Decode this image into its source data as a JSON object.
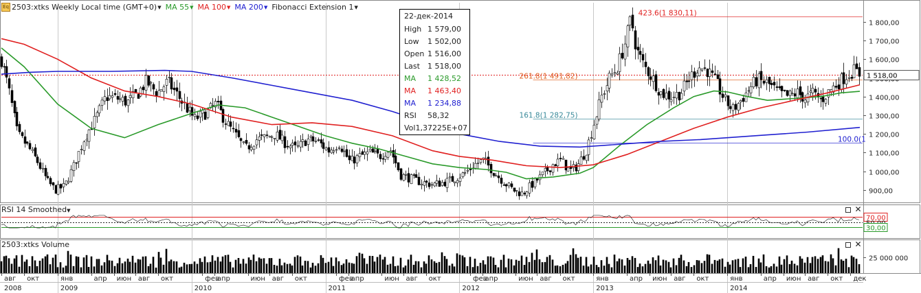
{
  "header": {
    "symbol_icon": "Eq",
    "title": "2503:xtks Weekly Local time (GMT+0)",
    "indicators": [
      {
        "label": "MA 55",
        "color": "#2a9a2a"
      },
      {
        "label": "MA 100",
        "color": "#e02020"
      },
      {
        "label": "MA 200",
        "color": "#2020d0"
      },
      {
        "label": "Fibonacci Extension 1",
        "color": "#222222"
      }
    ]
  },
  "tooltip": {
    "date": "22-дек-2014",
    "rows": [
      {
        "k": "High",
        "v": "1 579,00",
        "color": "#222222"
      },
      {
        "k": "Low",
        "v": "1 502,00",
        "color": "#222222"
      },
      {
        "k": "Open",
        "v": "1 516,00",
        "color": "#222222"
      },
      {
        "k": "Last",
        "v": "1 518,00",
        "color": "#222222"
      },
      {
        "k": "MA",
        "v": "1 428,52",
        "color": "#2a9a2a"
      },
      {
        "k": "MA",
        "v": "1 463,40",
        "color": "#e02020"
      },
      {
        "k": "MA",
        "v": "1 234,88",
        "color": "#2020d0"
      },
      {
        "k": "RSI",
        "v": "58,32",
        "color": "#222222"
      },
      {
        "k": "Vol",
        "v": "1,37225E+07",
        "color": "#222222"
      }
    ]
  },
  "rsi_panel": {
    "title": "RSI 14 Smoothed"
  },
  "volume_panel": {
    "title": "2503:xtks Volume"
  },
  "chart_data": {
    "type": "line",
    "price_axis": {
      "min": 830,
      "max": 1880,
      "ticks": [
        900,
        1000,
        1100,
        1200,
        1300,
        1400,
        1500,
        1600,
        1700,
        1800
      ],
      "tick_labels": [
        "900,00",
        "1 000,00",
        "1 100,00",
        "1 200,00",
        "1 300,00",
        "1 400,00",
        "1 500,00",
        "1 600,00",
        "1 700,00",
        "1 800,00"
      ]
    },
    "last_price": {
      "value": 1518,
      "label": "1 518,00"
    },
    "time_axis": {
      "start": 2008.58,
      "end": 2014.99,
      "months": [
        {
          "t": 2008.58,
          "label": "авг"
        },
        {
          "t": 2008.75,
          "label": "окт"
        },
        {
          "t": 2009.0,
          "label": "янв"
        },
        {
          "t": 2009.25,
          "label": "апр"
        },
        {
          "t": 2009.42,
          "label": "июн"
        },
        {
          "t": 2009.58,
          "label": "авг"
        },
        {
          "t": 2009.75,
          "label": "окт"
        },
        {
          "t": 2010.08,
          "label": "фев"
        },
        {
          "t": 2010.17,
          "label": "апр"
        },
        {
          "t": 2010.42,
          "label": "июн"
        },
        {
          "t": 2010.58,
          "label": "авг"
        },
        {
          "t": 2010.75,
          "label": "окт"
        },
        {
          "t": 2011.08,
          "label": "фев"
        },
        {
          "t": 2011.17,
          "label": "апр"
        },
        {
          "t": 2011.42,
          "label": "июн"
        },
        {
          "t": 2011.58,
          "label": "авг"
        },
        {
          "t": 2011.75,
          "label": "окт"
        },
        {
          "t": 2012.08,
          "label": "фев"
        },
        {
          "t": 2012.17,
          "label": "апр"
        },
        {
          "t": 2012.42,
          "label": "июн"
        },
        {
          "t": 2012.58,
          "label": "авг"
        },
        {
          "t": 2012.75,
          "label": "окт"
        },
        {
          "t": 2013.0,
          "label": "янв"
        },
        {
          "t": 2013.25,
          "label": "апр"
        },
        {
          "t": 2013.42,
          "label": "июн"
        },
        {
          "t": 2013.58,
          "label": "авг"
        },
        {
          "t": 2013.75,
          "label": "окт"
        },
        {
          "t": 2014.0,
          "label": "янв"
        },
        {
          "t": 2014.25,
          "label": "апр"
        },
        {
          "t": 2014.42,
          "label": "июн"
        },
        {
          "t": 2014.58,
          "label": "авг"
        },
        {
          "t": 2014.75,
          "label": "окт"
        },
        {
          "t": 2014.92,
          "label": "дек"
        }
      ],
      "years": [
        {
          "t": 2008.58,
          "label": "2008"
        },
        {
          "t": 2009.0,
          "label": "2009"
        },
        {
          "t": 2010.0,
          "label": "2010"
        },
        {
          "t": 2011.0,
          "label": "2011"
        },
        {
          "t": 2012.0,
          "label": "2012"
        },
        {
          "t": 2013.0,
          "label": "2013"
        },
        {
          "t": 2014.0,
          "label": "2014"
        }
      ]
    },
    "close_anchors": [
      [
        2008.58,
        1600
      ],
      [
        2008.63,
        1450
      ],
      [
        2008.7,
        1200
      ],
      [
        2008.78,
        1130
      ],
      [
        2008.85,
        1050
      ],
      [
        2008.92,
        950
      ],
      [
        2008.98,
        900
      ],
      [
        2009.05,
        920
      ],
      [
        2009.12,
        1030
      ],
      [
        2009.2,
        1180
      ],
      [
        2009.28,
        1280
      ],
      [
        2009.36,
        1400
      ],
      [
        2009.44,
        1390
      ],
      [
        2009.52,
        1370
      ],
      [
        2009.6,
        1420
      ],
      [
        2009.66,
        1480
      ],
      [
        2009.74,
        1420
      ],
      [
        2009.82,
        1480
      ],
      [
        2009.88,
        1420
      ],
      [
        2009.95,
        1350
      ],
      [
        2010.02,
        1280
      ],
      [
        2010.1,
        1310
      ],
      [
        2010.18,
        1360
      ],
      [
        2010.25,
        1270
      ],
      [
        2010.32,
        1200
      ],
      [
        2010.4,
        1120
      ],
      [
        2010.48,
        1170
      ],
      [
        2010.55,
        1180
      ],
      [
        2010.62,
        1200
      ],
      [
        2010.7,
        1150
      ],
      [
        2010.78,
        1120
      ],
      [
        2010.86,
        1170
      ],
      [
        2010.94,
        1160
      ],
      [
        2011.02,
        1110
      ],
      [
        2011.1,
        1150
      ],
      [
        2011.18,
        1050
      ],
      [
        2011.25,
        1080
      ],
      [
        2011.33,
        1100
      ],
      [
        2011.4,
        1080
      ],
      [
        2011.48,
        1120
      ],
      [
        2011.56,
        980
      ],
      [
        2011.64,
        960
      ],
      [
        2011.72,
        940
      ],
      [
        2011.8,
        930
      ],
      [
        2011.88,
        940
      ],
      [
        2011.96,
        960
      ],
      [
        2012.04,
        990
      ],
      [
        2012.12,
        1040
      ],
      [
        2012.18,
        1060
      ],
      [
        2012.25,
        1000
      ],
      [
        2012.32,
        950
      ],
      [
        2012.4,
        900
      ],
      [
        2012.47,
        880
      ],
      [
        2012.54,
        930
      ],
      [
        2012.62,
        980
      ],
      [
        2012.7,
        1040
      ],
      [
        2012.76,
        1060
      ],
      [
        2012.82,
        1000
      ],
      [
        2012.88,
        1030
      ],
      [
        2012.95,
        1120
      ],
      [
        2013.0,
        1250
      ],
      [
        2013.06,
        1400
      ],
      [
        2013.12,
        1500
      ],
      [
        2013.18,
        1560
      ],
      [
        2013.24,
        1700
      ],
      [
        2013.28,
        1820
      ],
      [
        2013.32,
        1650
      ],
      [
        2013.38,
        1560
      ],
      [
        2013.44,
        1500
      ],
      [
        2013.5,
        1420
      ],
      [
        2013.58,
        1400
      ],
      [
        2013.65,
        1420
      ],
      [
        2013.72,
        1500
      ],
      [
        2013.78,
        1560
      ],
      [
        2013.85,
        1540
      ],
      [
        2013.92,
        1470
      ],
      [
        2013.98,
        1380
      ],
      [
        2014.04,
        1330
      ],
      [
        2014.1,
        1380
      ],
      [
        2014.16,
        1440
      ],
      [
        2014.22,
        1490
      ],
      [
        2014.3,
        1470
      ],
      [
        2014.38,
        1420
      ],
      [
        2014.45,
        1400
      ],
      [
        2014.52,
        1420
      ],
      [
        2014.58,
        1390
      ],
      [
        2014.64,
        1420
      ],
      [
        2014.7,
        1380
      ],
      [
        2014.76,
        1430
      ],
      [
        2014.82,
        1470
      ],
      [
        2014.88,
        1510
      ],
      [
        2014.94,
        1540
      ],
      [
        2014.99,
        1518
      ]
    ],
    "series": [
      {
        "name": "MA 55",
        "color": "#2a9a2a",
        "points": [
          [
            2008.58,
            1660
          ],
          [
            2008.75,
            1560
          ],
          [
            2009.0,
            1360
          ],
          [
            2009.25,
            1230
          ],
          [
            2009.5,
            1180
          ],
          [
            2009.75,
            1250
          ],
          [
            2010.0,
            1310
          ],
          [
            2010.2,
            1355
          ],
          [
            2010.4,
            1340
          ],
          [
            2010.6,
            1290
          ],
          [
            2010.8,
            1240
          ],
          [
            2011.0,
            1190
          ],
          [
            2011.2,
            1150
          ],
          [
            2011.4,
            1120
          ],
          [
            2011.6,
            1080
          ],
          [
            2011.8,
            1040
          ],
          [
            2012.0,
            1020
          ],
          [
            2012.2,
            1010
          ],
          [
            2012.35,
            995
          ],
          [
            2012.5,
            960
          ],
          [
            2012.7,
            970
          ],
          [
            2012.9,
            990
          ],
          [
            2013.0,
            1020
          ],
          [
            2013.2,
            1140
          ],
          [
            2013.4,
            1250
          ],
          [
            2013.6,
            1340
          ],
          [
            2013.75,
            1400
          ],
          [
            2013.9,
            1430
          ],
          [
            2014.0,
            1425
          ],
          [
            2014.15,
            1400
          ],
          [
            2014.3,
            1380
          ],
          [
            2014.5,
            1390
          ],
          [
            2014.7,
            1400
          ],
          [
            2014.85,
            1420
          ],
          [
            2014.99,
            1428
          ]
        ]
      },
      {
        "name": "MA 100",
        "color": "#e02020",
        "points": [
          [
            2008.58,
            1710
          ],
          [
            2008.75,
            1680
          ],
          [
            2009.0,
            1600
          ],
          [
            2009.25,
            1500
          ],
          [
            2009.5,
            1430
          ],
          [
            2009.75,
            1400
          ],
          [
            2010.0,
            1360
          ],
          [
            2010.3,
            1290
          ],
          [
            2010.6,
            1250
          ],
          [
            2010.9,
            1260
          ],
          [
            2011.2,
            1240
          ],
          [
            2011.5,
            1190
          ],
          [
            2011.8,
            1110
          ],
          [
            2012.0,
            1080
          ],
          [
            2012.25,
            1060
          ],
          [
            2012.5,
            1030
          ],
          [
            2012.75,
            1020
          ],
          [
            2013.0,
            1035
          ],
          [
            2013.25,
            1090
          ],
          [
            2013.5,
            1160
          ],
          [
            2013.75,
            1230
          ],
          [
            2014.0,
            1290
          ],
          [
            2014.25,
            1340
          ],
          [
            2014.5,
            1380
          ],
          [
            2014.75,
            1420
          ],
          [
            2014.99,
            1463
          ]
        ]
      },
      {
        "name": "MA 200",
        "color": "#2020d0",
        "points": [
          [
            2008.58,
            1520
          ],
          [
            2008.8,
            1530
          ],
          [
            2009.0,
            1535
          ],
          [
            2009.4,
            1535
          ],
          [
            2009.8,
            1540
          ],
          [
            2010.0,
            1535
          ],
          [
            2010.3,
            1500
          ],
          [
            2010.6,
            1460
          ],
          [
            2010.9,
            1420
          ],
          [
            2011.2,
            1380
          ],
          [
            2011.5,
            1320
          ],
          [
            2011.8,
            1250
          ],
          [
            2012.0,
            1200
          ],
          [
            2012.3,
            1160
          ],
          [
            2012.6,
            1135
          ],
          [
            2012.9,
            1130
          ],
          [
            2013.2,
            1145
          ],
          [
            2013.5,
            1160
          ],
          [
            2013.8,
            1170
          ],
          [
            2014.0,
            1180
          ],
          [
            2014.3,
            1195
          ],
          [
            2014.6,
            1210
          ],
          [
            2014.99,
            1235
          ]
        ]
      }
    ],
    "fib_levels": [
      {
        "label": "423,6(1 830,11)",
        "value": 1830.11,
        "color": "#e02020",
        "start": 2013.5
      },
      {
        "label": "261,8(1 491,82)",
        "value": 1491.82,
        "color": "#e06020",
        "start": 2012.55
      },
      {
        "label": "161,8(1 282,75)",
        "value": 1282.75,
        "color": "#3a8a9a",
        "start": 2012.55
      },
      {
        "label": "100,0(1",
        "value": 1153,
        "color": "#2020d0",
        "start": 2012.55
      }
    ],
    "fib_labels": [
      "423.6(1 830,11)",
      "261.8(1 491,82)",
      "161.8(1 282,75)",
      "100.0(1"
    ],
    "rsi": {
      "min": 0,
      "max": 100,
      "levels": [
        {
          "value": 70,
          "label": "70,00",
          "color": "#e02020"
        },
        {
          "value": 50,
          "label": "50,00",
          "color": "#222222"
        },
        {
          "value": 30,
          "label": "30,00",
          "color": "#2a9a2a"
        }
      ],
      "last": 58.32
    },
    "volume": {
      "tick_label": "25 000 000",
      "tick_value": 25000000,
      "max": 40000000,
      "last": 13722500
    }
  }
}
